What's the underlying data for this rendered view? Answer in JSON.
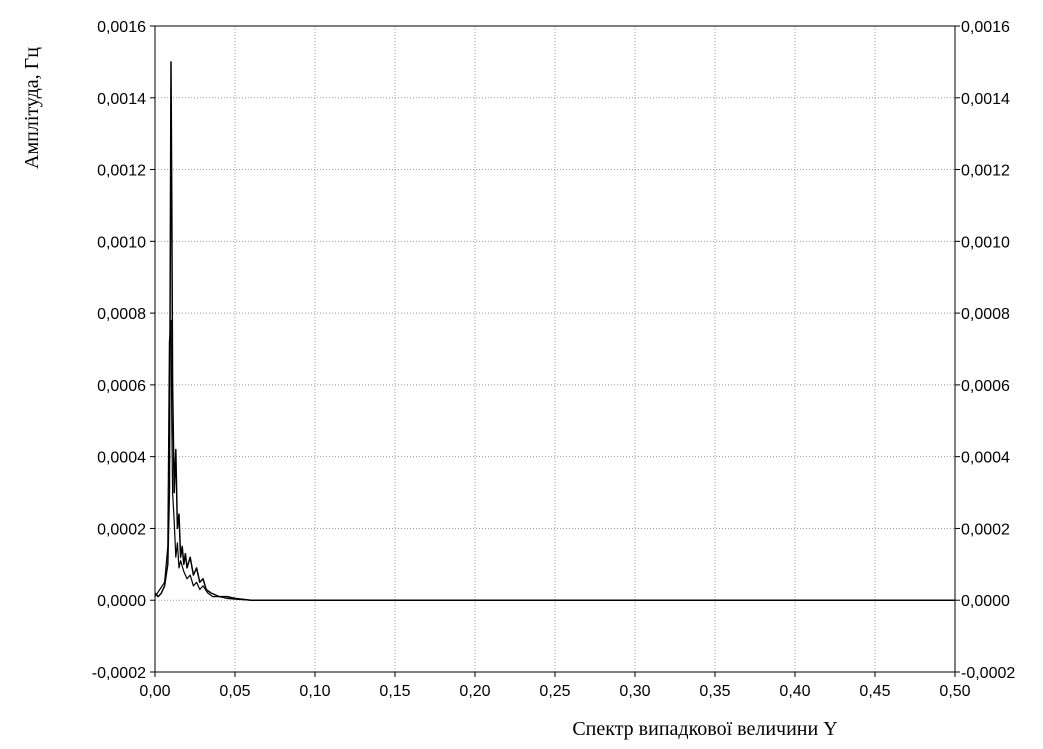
{
  "chart_data": {
    "type": "line",
    "title": "",
    "xlabel": "Спектр випадкової величини Y",
    "ylabel": "Амплітуда, Гц",
    "xlim": [
      0.0,
      0.5
    ],
    "ylim": [
      -0.0002,
      0.0016
    ],
    "x_ticks": [
      0.0,
      0.05,
      0.1,
      0.15,
      0.2,
      0.25,
      0.3,
      0.35,
      0.4,
      0.45,
      0.5
    ],
    "x_tick_labels": [
      "0,00",
      "0,05",
      "0,10",
      "0,15",
      "0,20",
      "0,25",
      "0,30",
      "0,35",
      "0,40",
      "0,45",
      "0,50"
    ],
    "y_ticks": [
      -0.0002,
      0.0,
      0.0002,
      0.0004,
      0.0006,
      0.0008,
      0.001,
      0.0012,
      0.0014,
      0.0016
    ],
    "y_tick_labels": [
      "-0,0002",
      "0,0000",
      "0,0002",
      "0,0004",
      "0,0006",
      "0,0008",
      "0,0010",
      "0,0012",
      "0,0014",
      "0,0016"
    ],
    "grid": true,
    "right_axis_labels": true,
    "series": [
      {
        "color": "#000000",
        "x": [
          0.0,
          0.002,
          0.004,
          0.006,
          0.008,
          0.009,
          0.0095,
          0.01,
          0.0105,
          0.011,
          0.0115,
          0.012,
          0.013,
          0.014,
          0.015,
          0.016,
          0.017,
          0.018,
          0.019,
          0.02,
          0.022,
          0.024,
          0.026,
          0.028,
          0.03,
          0.032,
          0.035,
          0.04,
          0.045,
          0.05,
          0.06,
          0.1,
          0.2,
          0.3,
          0.4,
          0.5
        ],
        "y": [
          2e-05,
          1e-05,
          2e-05,
          4e-05,
          0.0001,
          0.0003,
          0.0009,
          0.0015,
          0.0011,
          0.0006,
          0.00045,
          0.0003,
          0.00042,
          0.0002,
          0.00024,
          0.00012,
          0.00015,
          0.0001,
          0.00013,
          9e-05,
          0.00012,
          7e-05,
          9e-05,
          5e-05,
          6e-05,
          3e-05,
          2e-05,
          1e-05,
          1e-05,
          5e-06,
          0.0,
          0.0,
          0.0,
          0.0,
          0.0,
          0.0
        ]
      },
      {
        "color": "#000000",
        "x": [
          0.0,
          0.003,
          0.006,
          0.008,
          0.009,
          0.01,
          0.0105,
          0.011,
          0.012,
          0.013,
          0.014,
          0.015,
          0.016,
          0.018,
          0.02,
          0.022,
          0.024,
          0.026,
          0.028,
          0.03,
          0.033,
          0.036,
          0.04,
          0.045,
          0.05,
          0.06,
          0.1,
          0.2,
          0.3,
          0.4,
          0.5
        ],
        "y": [
          1e-05,
          3e-05,
          5e-05,
          0.00015,
          0.00072,
          0.00078,
          0.0005,
          0.0003,
          0.00022,
          0.00012,
          0.00016,
          9e-05,
          0.00011,
          8e-05,
          6e-05,
          7e-05,
          4e-05,
          5e-05,
          3e-05,
          4e-05,
          2e-05,
          1e-05,
          1e-05,
          5e-06,
          3e-06,
          0.0,
          0.0,
          0.0,
          0.0,
          0.0,
          0.0
        ]
      }
    ]
  }
}
